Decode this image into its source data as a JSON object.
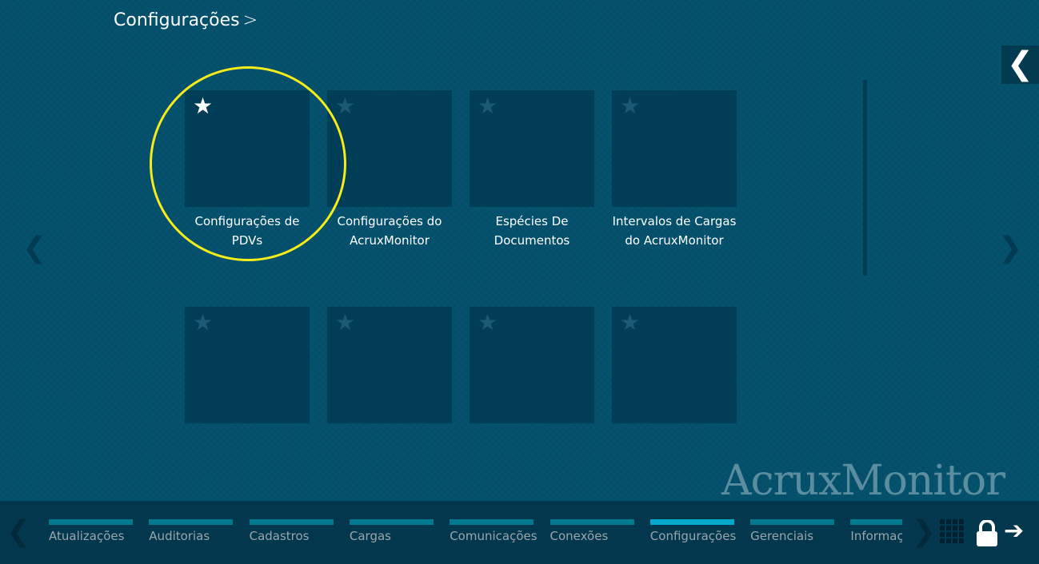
{
  "header": {
    "title": "Configurações",
    "chevron": ">"
  },
  "tiles": [
    {
      "label": "Configurações de PDVs",
      "favorite": true
    },
    {
      "label": "Configurações do AcruxMonitor",
      "favorite": false
    },
    {
      "label": "Espécies De Documentos",
      "favorite": false
    },
    {
      "label": "Intervalos de Cargas do AcruxMonitor",
      "favorite": false
    },
    {
      "label": "",
      "favorite": false
    },
    {
      "label": "",
      "favorite": false
    },
    {
      "label": "",
      "favorite": false
    },
    {
      "label": "",
      "favorite": false
    }
  ],
  "icons": {
    "star": "★",
    "prev": "❮",
    "next": "❯",
    "back": "❮",
    "arrow": "➔"
  },
  "watermark": "AcruxMonitor",
  "bottom_tabs": [
    {
      "label": "Atualizações",
      "active": false
    },
    {
      "label": "Auditorias",
      "active": false
    },
    {
      "label": "Cadastros",
      "active": false
    },
    {
      "label": "Cargas",
      "active": false
    },
    {
      "label": "Comunicações",
      "active": false
    },
    {
      "label": "Conexões",
      "active": false
    },
    {
      "label": "Configurações",
      "active": true
    },
    {
      "label": "Gerenciais",
      "active": false
    },
    {
      "label": "Informações",
      "active": false
    }
  ],
  "colors": {
    "background": "#05526f",
    "tile": "#003e58",
    "bottom_bar": "#03374d",
    "tab_bar": "#007a90",
    "tab_active": "#00aacc",
    "highlight": "#f5ec1a"
  }
}
